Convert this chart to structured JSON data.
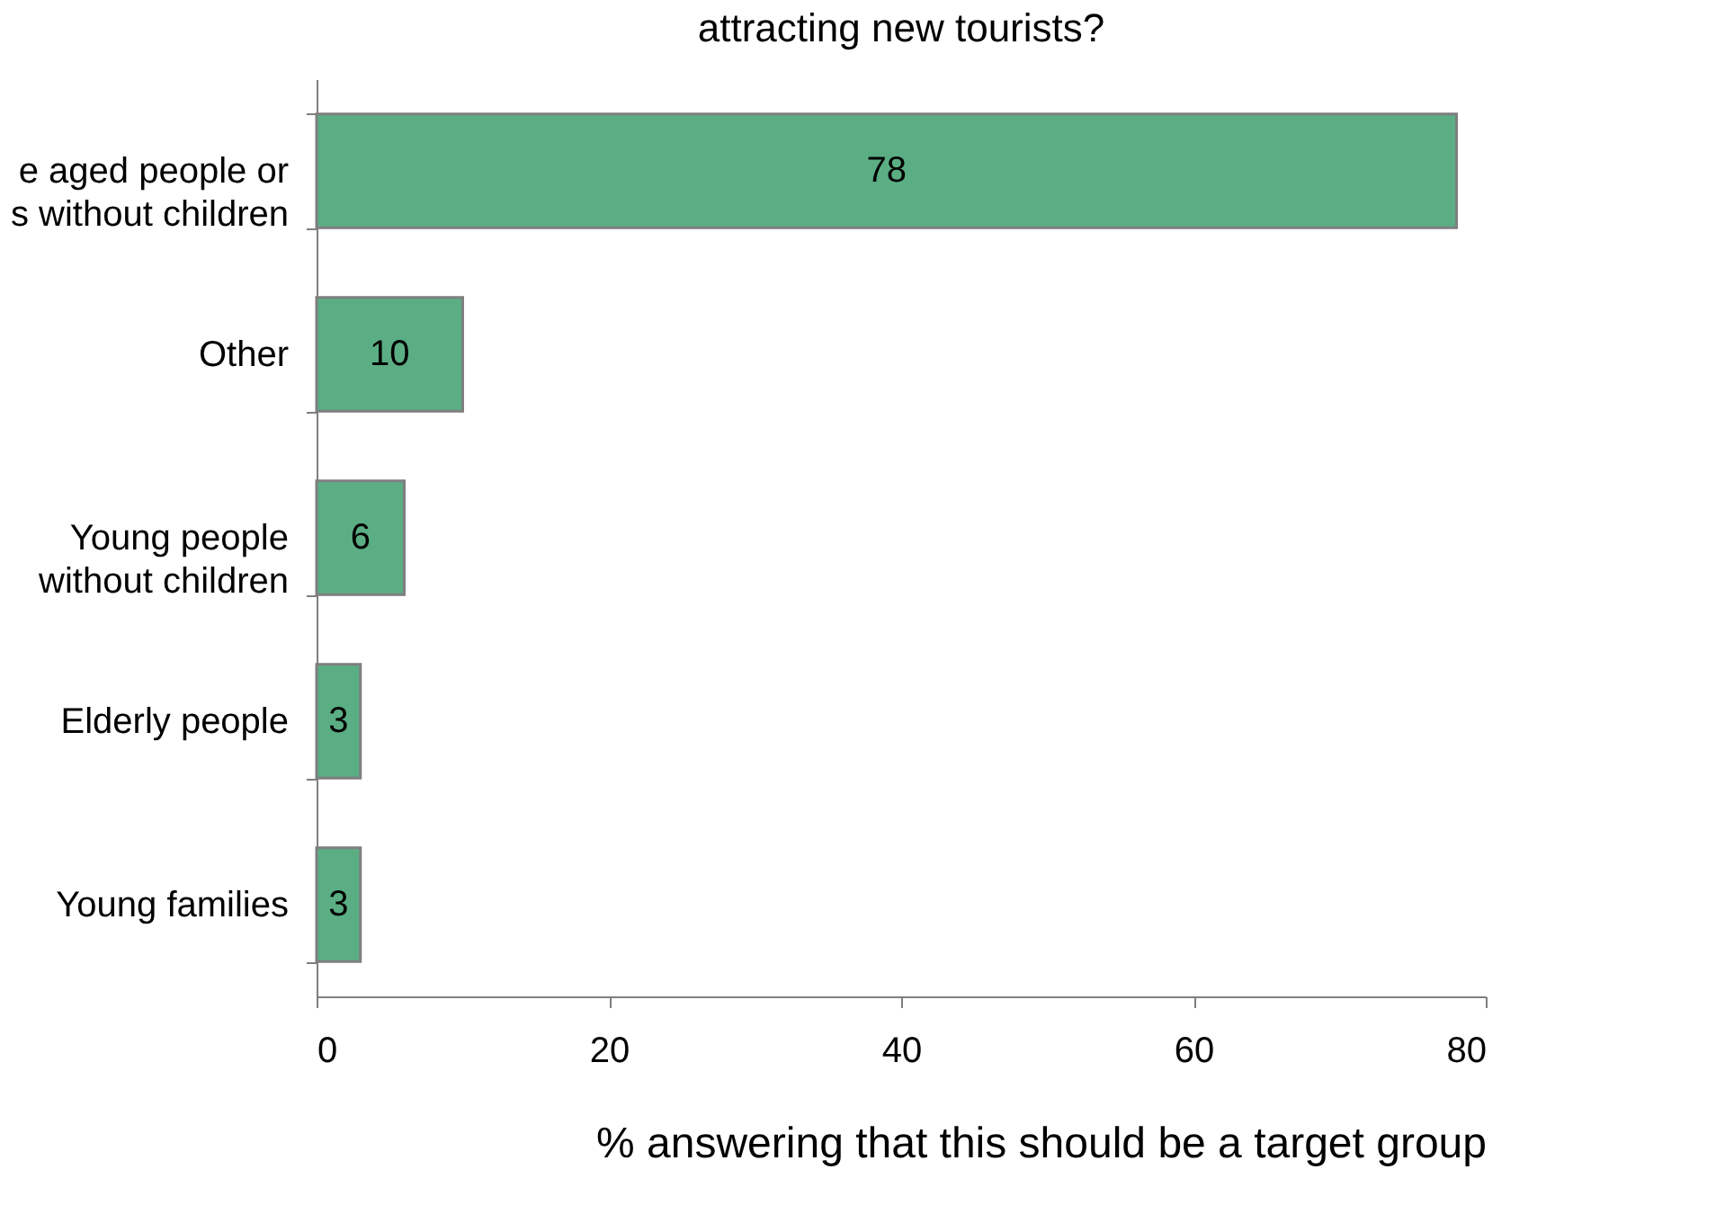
{
  "chart_data": {
    "type": "bar",
    "orientation": "horizontal",
    "title": "attracting new tourists?",
    "categories": [
      "e aged people or\ns without children",
      "Other",
      "Young people \nwithout children",
      "Elderly people",
      "Young families"
    ],
    "values": [
      78,
      10,
      6,
      3,
      3
    ],
    "color": "#5bae84",
    "xlabel": "% answering that this should be a target group",
    "xlim": [
      0,
      80
    ],
    "xticks": [
      0,
      20,
      40,
      60,
      80
    ],
    "data_labels": true,
    "grid": false
  }
}
